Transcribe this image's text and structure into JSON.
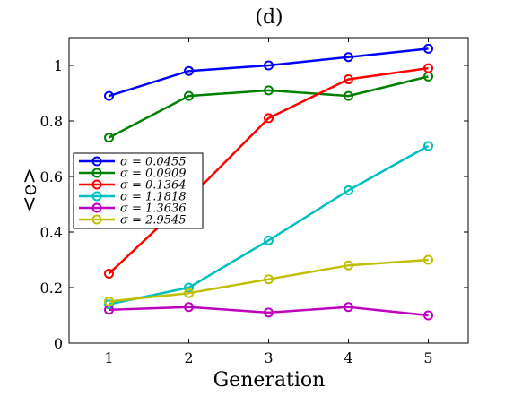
{
  "chart_data": {
    "type": "line",
    "title": "(d)",
    "xlabel": "Generation",
    "ylabel": "<e>",
    "x": [
      1,
      2,
      3,
      4,
      5
    ],
    "xlim": [
      0.5,
      5.5
    ],
    "ylim": [
      0,
      1.1
    ],
    "xticks": [
      "1",
      "2",
      "3",
      "4",
      "5"
    ],
    "yticks": [
      "0",
      "0.2",
      "0.4",
      "0.6",
      "0.8",
      "1"
    ],
    "grid": false,
    "legend_position": "left-center",
    "series": [
      {
        "name": "σ = 0.0455",
        "color": "#0000ff",
        "values": [
          0.89,
          0.98,
          1.0,
          1.03,
          1.06
        ]
      },
      {
        "name": "σ = 0.0909",
        "color": "#008000",
        "values": [
          0.74,
          0.89,
          0.91,
          0.89,
          0.96
        ]
      },
      {
        "name": "σ = 0.1364",
        "color": "#ff0000",
        "values": [
          0.25,
          0.52,
          0.81,
          0.95,
          0.99
        ]
      },
      {
        "name": "σ = 1.1818",
        "color": "#00bfbf",
        "values": [
          0.14,
          0.2,
          0.37,
          0.55,
          0.71
        ]
      },
      {
        "name": "σ = 1.3636",
        "color": "#bf00bf",
        "values": [
          0.12,
          0.13,
          0.11,
          0.13,
          0.1
        ]
      },
      {
        "name": "σ = 2.9545",
        "color": "#bfbf00",
        "values": [
          0.15,
          0.18,
          0.23,
          0.28,
          0.3
        ]
      }
    ]
  }
}
